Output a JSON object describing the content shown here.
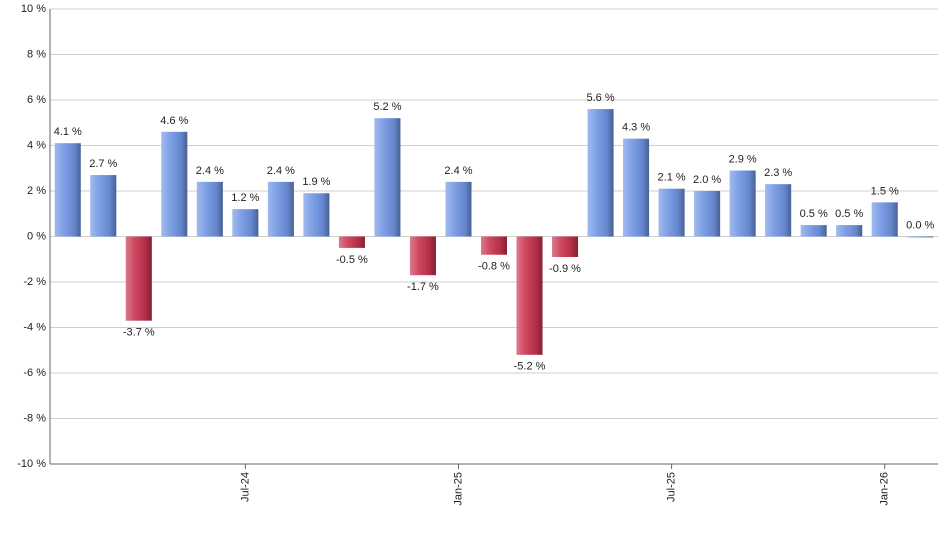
{
  "chart_data": {
    "type": "bar",
    "categories": [
      null,
      null,
      null,
      null,
      null,
      "Jul-24",
      null,
      null,
      null,
      null,
      null,
      "Jan-25",
      null,
      null,
      null,
      null,
      null,
      "Jul-25",
      null,
      null,
      null,
      null,
      null,
      "Jan-26",
      null
    ],
    "values": [
      4.1,
      2.7,
      -3.7,
      4.6,
      2.4,
      1.2,
      2.4,
      1.9,
      -0.5,
      5.2,
      -1.7,
      2.4,
      -0.8,
      -5.2,
      -0.9,
      5.6,
      4.3,
      2.1,
      2.0,
      2.9,
      2.3,
      0.5,
      0.5,
      1.5,
      0.0
    ],
    "value_labels": [
      "4.1 %",
      "2.7 %",
      "-3.7 %",
      "4.6 %",
      "2.4 %",
      "1.2 %",
      "2.4 %",
      "1.9 %",
      "-0.5 %",
      "5.2 %",
      "-1.7 %",
      "2.4 %",
      "-0.8 %",
      "-5.2 %",
      "-0.9 %",
      "5.6 %",
      "4.3 %",
      "2.1 %",
      "2.0 %",
      "2.9 %",
      "2.3 %",
      "0.5 %",
      "0.5 %",
      "1.5 %",
      "0.0 %"
    ],
    "color": "#6f95e3",
    "negative_color": "#c8334f",
    "ylim": [
      -10,
      10
    ],
    "yticks": [
      {
        "value": -10,
        "label": "-10 %"
      },
      {
        "value": -8,
        "label": "-8 %"
      },
      {
        "value": -6,
        "label": "-6 %"
      },
      {
        "value": -4,
        "label": "-4 %"
      },
      {
        "value": -2,
        "label": "-2 %"
      },
      {
        "value": 0,
        "label": "0 %"
      },
      {
        "value": 2,
        "label": "2 %"
      },
      {
        "value": 4,
        "label": "4 %"
      },
      {
        "value": 6,
        "label": "6 %"
      },
      {
        "value": 8,
        "label": "8 %"
      },
      {
        "value": 10,
        "label": "10 %"
      }
    ],
    "grid": true
  }
}
